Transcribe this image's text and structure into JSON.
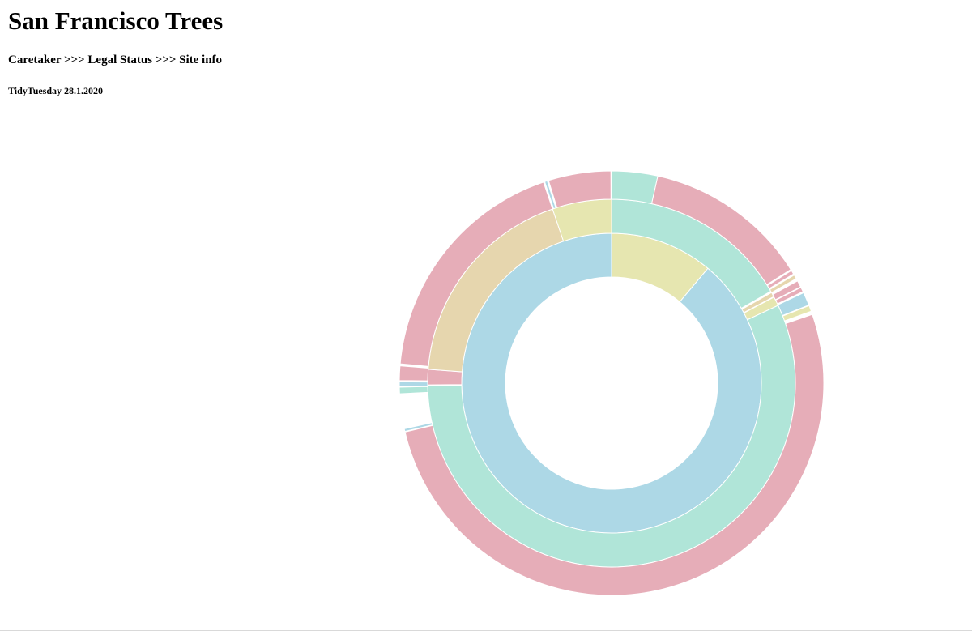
{
  "header": {
    "title": "San Francisco Trees",
    "subtitle": "Caretaker >>> Legal Status >>> Site info",
    "note": "TidyTuesday 28.1.2020"
  },
  "chart_data": {
    "type": "sunburst",
    "colors": {
      "blue": "#add8e6",
      "khaki": "#e6e6b0",
      "teal": "#b0e5d8",
      "pink": "#e6adb8",
      "wheat": "#e6d6ae"
    },
    "rings": [
      {
        "level": "Caretaker",
        "segments": [
          {
            "start": 0.0,
            "end": 0.1111,
            "color": "khaki"
          },
          {
            "start": 0.1111,
            "end": 1.0,
            "color": "blue"
          }
        ]
      },
      {
        "level": "Legal Status",
        "segments": [
          {
            "start": 0.0,
            "end": 0.1667,
            "color": "teal"
          },
          {
            "start": 0.168,
            "end": 0.172,
            "color": "wheat"
          },
          {
            "start": 0.1725,
            "end": 0.1805,
            "color": "khaki"
          },
          {
            "start": 0.1805,
            "end": 0.748,
            "color": "teal"
          },
          {
            "start": 0.7485,
            "end": 0.762,
            "color": "pink"
          },
          {
            "start": 0.762,
            "end": 0.948,
            "color": "wheat"
          },
          {
            "start": 0.948,
            "end": 1.0,
            "color": "khaki"
          }
        ]
      },
      {
        "level": "Site info",
        "segments": [
          {
            "start": 0.0,
            "end": 0.035,
            "color": "teal"
          },
          {
            "start": 0.035,
            "end": 0.16,
            "color": "pink"
          },
          {
            "start": 0.161,
            "end": 0.164,
            "color": "pink"
          },
          {
            "start": 0.165,
            "end": 0.168,
            "color": "wheat"
          },
          {
            "start": 0.17,
            "end": 0.175,
            "color": "pink"
          },
          {
            "start": 0.1755,
            "end": 0.179,
            "color": "pink"
          },
          {
            "start": 0.18,
            "end": 0.19,
            "color": "blue"
          },
          {
            "start": 0.1905,
            "end": 0.195,
            "color": "khaki"
          },
          {
            "start": 0.1975,
            "end": 0.713,
            "color": "pink"
          },
          {
            "start": 0.7135,
            "end": 0.7155,
            "color": "blue"
          },
          {
            "start": 0.742,
            "end": 0.747,
            "color": "teal"
          },
          {
            "start": 0.7475,
            "end": 0.751,
            "color": "blue"
          },
          {
            "start": 0.752,
            "end": 0.763,
            "color": "pink"
          },
          {
            "start": 0.7645,
            "end": 0.948,
            "color": "pink"
          },
          {
            "start": 0.949,
            "end": 0.951,
            "color": "blue"
          },
          {
            "start": 0.952,
            "end": 0.9995,
            "color": "pink"
          }
        ]
      }
    ]
  }
}
